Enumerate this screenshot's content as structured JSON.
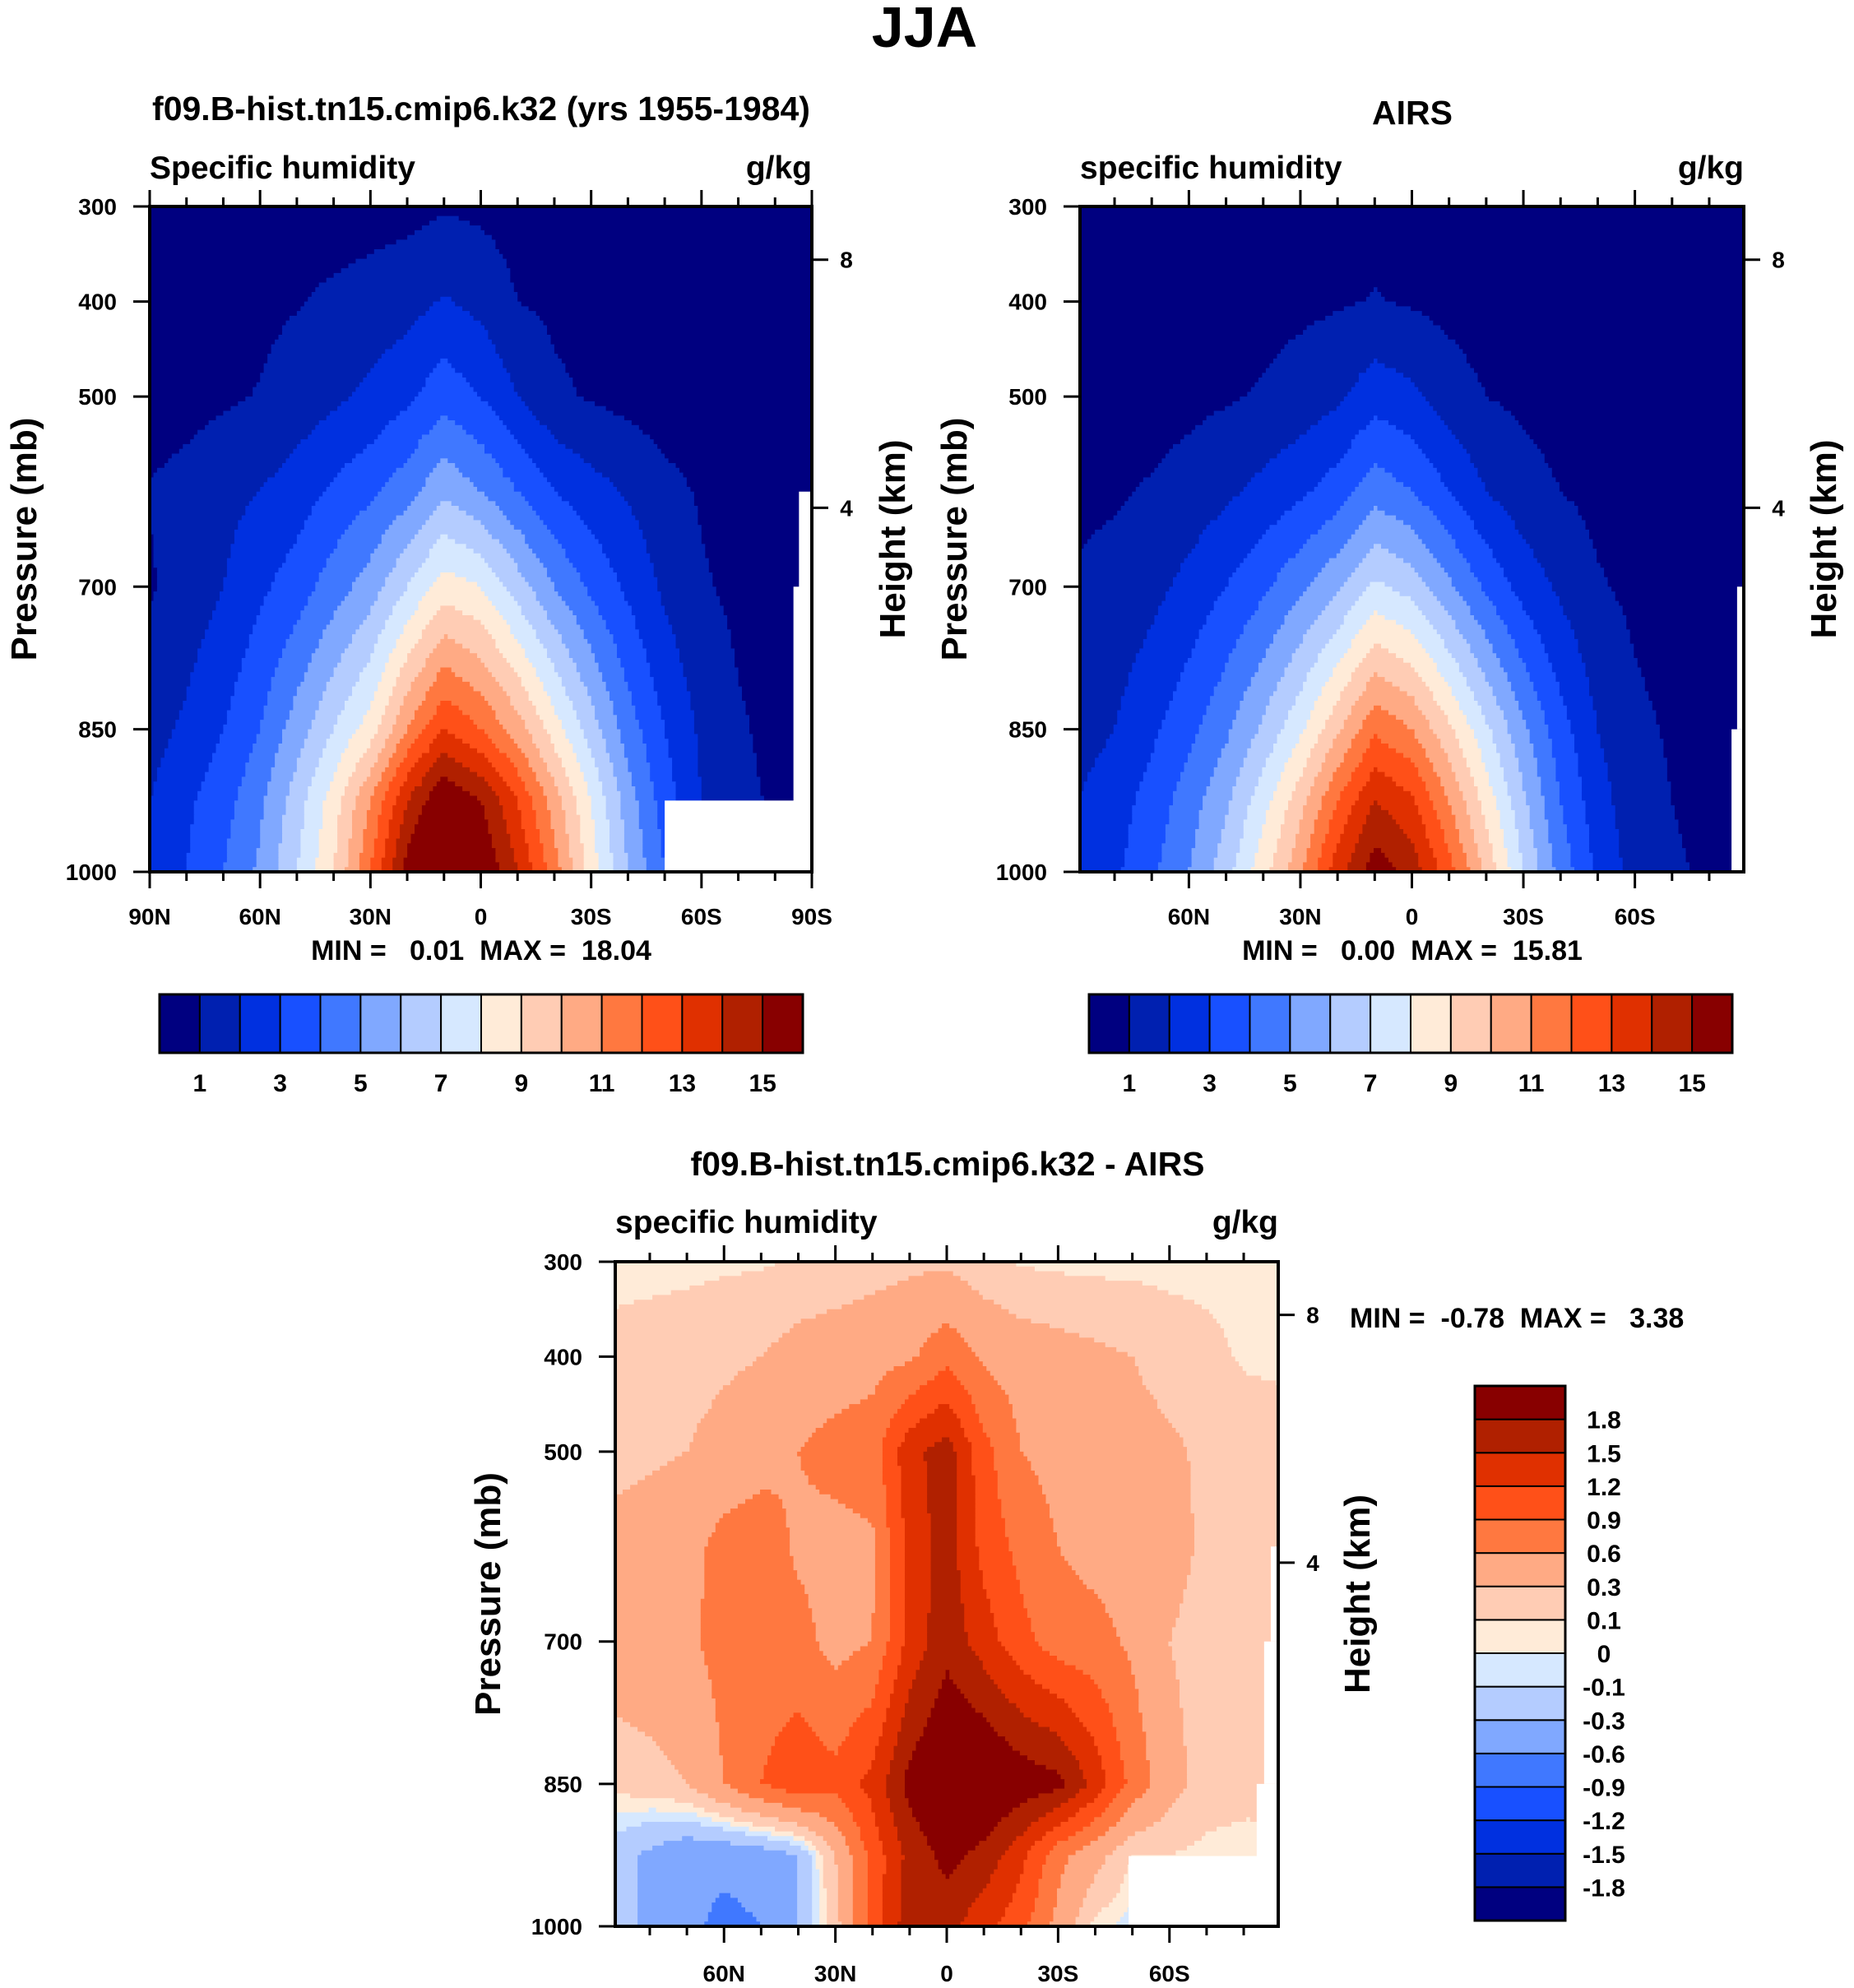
{
  "figure_title": "JJA",
  "palette": [
    "#000080",
    "#0020B0",
    "#0030E0",
    "#1850FF",
    "#4078FF",
    "#80A8FF",
    "#B4CCFF",
    "#D6E8FF",
    "#FFEBD8",
    "#FFCCB4",
    "#FFAA84",
    "#FF7840",
    "#FF5018",
    "#E03000",
    "#B02000",
    "#880000"
  ],
  "chart_data": [
    {
      "type": "heatmap",
      "title": "f09.B-hist.tn15.cmip6.k32 (yrs 1955-1984)",
      "left_string": "Specific humidity",
      "right_string": "g/kg",
      "stats": "MIN =   0.01  MAX =  18.04",
      "ylabel": "Pressure (mb)",
      "y2label": "Height (km)",
      "xlim": [
        90,
        -90
      ],
      "ylim": [
        300,
        1000
      ],
      "x_ticks": [
        {
          "value": 90,
          "label": "90N"
        },
        {
          "value": 60,
          "label": "60N"
        },
        {
          "value": 30,
          "label": "30N"
        },
        {
          "value": 0,
          "label": "0"
        },
        {
          "value": -30,
          "label": "30S"
        },
        {
          "value": -60,
          "label": "60S"
        },
        {
          "value": -90,
          "label": "90S"
        }
      ],
      "y_ticks": [
        {
          "value": 300,
          "label": "300"
        },
        {
          "value": 400,
          "label": "400"
        },
        {
          "value": 500,
          "label": "500"
        },
        {
          "value": 700,
          "label": "700"
        },
        {
          "value": 850,
          "label": "850"
        },
        {
          "value": 1000,
          "label": "1000"
        }
      ],
      "height_ticks": [
        {
          "value": 356,
          "label": "8"
        },
        {
          "value": 617,
          "label": "4"
        }
      ],
      "levels": [
        1,
        2,
        3,
        4,
        5,
        6,
        7,
        8,
        9,
        10,
        11,
        12,
        13,
        14,
        15
      ],
      "colorbar_labels": [
        "1",
        "3",
        "5",
        "7",
        "9",
        "11",
        "13",
        "15"
      ],
      "lat": [
        90,
        80,
        70,
        60,
        50,
        40,
        30,
        20,
        10,
        0,
        -10,
        -20,
        -30,
        -40,
        -50,
        -60,
        -70,
        -80,
        -90
      ],
      "p": [
        300,
        400,
        500,
        600,
        700,
        850,
        925,
        1000
      ],
      "z": [
        [
          0.3,
          0.3,
          0.4,
          0.4,
          0.5,
          0.5,
          0.6,
          0.7,
          0.9,
          0.8,
          0.6,
          0.5,
          0.4,
          0.3,
          0.3,
          0.2,
          0.2,
          0.1,
          0.1
        ],
        [
          0.4,
          0.5,
          0.6,
          0.8,
          0.95,
          1.2,
          1.4,
          1.6,
          2.1,
          1.7,
          1.0,
          0.8,
          0.6,
          0.5,
          0.4,
          0.3,
          0.2,
          0.15,
          0.1
        ],
        [
          0.6,
          0.7,
          0.85,
          1.05,
          1.4,
          1.8,
          2.2,
          2.8,
          3.6,
          3.0,
          2.0,
          1.2,
          0.9,
          0.7,
          0.5,
          0.4,
          0.3,
          0.25,
          0.2
        ],
        [
          1.05,
          1.3,
          1.7,
          2.0,
          2.5,
          3.2,
          3.8,
          4.6,
          5.8,
          5.0,
          4.0,
          3.0,
          2.4,
          1.9,
          1.3,
          0.9,
          0.6,
          0.5,
          0.45
        ],
        [
          0.9,
          1.4,
          2.0,
          2.8,
          3.5,
          4.5,
          5.5,
          7.0,
          8.5,
          8.0,
          6.5,
          5.0,
          3.8,
          2.8,
          1.8,
          1.1,
          0.8,
          0.6,
          0.5
        ],
        [
          1.6,
          2.2,
          3.0,
          4.0,
          5.5,
          7.0,
          8.5,
          11,
          13,
          12,
          10.5,
          8.5,
          6.5,
          4.5,
          3.0,
          1.8,
          1.1,
          0.8,
          0.6
        ],
        [
          2.0,
          2.8,
          3.6,
          4.8,
          6.5,
          8.5,
          11,
          14,
          16,
          15,
          13,
          10.5,
          8,
          5.5,
          3.5,
          2.0,
          1.2,
          0.9,
          0.7
        ],
        [
          2.2,
          3.0,
          4.0,
          5.2,
          7.0,
          9.0,
          12,
          15.5,
          17.5,
          16,
          14,
          11.5,
          8.5,
          6,
          4,
          2.5,
          1.5,
          1,
          0.8
        ]
      ],
      "missing": [
        {
          "lat": [
            -50,
            -90
          ],
          "p": [
            925,
            1000
          ]
        },
        {
          "lat": [
            -86.5,
            -90
          ],
          "p": [
            600,
            1000
          ]
        },
        {
          "lat": [
            -85,
            -90
          ],
          "p": [
            700,
            1000
          ]
        }
      ]
    },
    {
      "type": "heatmap",
      "title": "AIRS",
      "left_string": "specific humidity",
      "right_string": "g/kg",
      "stats": "MIN =   0.00  MAX =  15.81",
      "ylabel": "Pressure (mb)",
      "y2label": "Height (km)",
      "xlim": [
        89.3,
        -89.3
      ],
      "ylim": [
        300,
        1000
      ],
      "x_ticks": [
        {
          "value": 60,
          "label": "60N"
        },
        {
          "value": 30,
          "label": "30N"
        },
        {
          "value": 0,
          "label": "0"
        },
        {
          "value": -30,
          "label": "30S"
        },
        {
          "value": -60,
          "label": "60S"
        }
      ],
      "y_ticks": [
        {
          "value": 300,
          "label": "300"
        },
        {
          "value": 400,
          "label": "400"
        },
        {
          "value": 500,
          "label": "500"
        },
        {
          "value": 700,
          "label": "700"
        },
        {
          "value": 850,
          "label": "850"
        },
        {
          "value": 1000,
          "label": "1000"
        }
      ],
      "height_ticks": [
        {
          "value": 356,
          "label": "8"
        },
        {
          "value": 617,
          "label": "4"
        }
      ],
      "levels": [
        1,
        2,
        3,
        4,
        5,
        6,
        7,
        8,
        9,
        10,
        11,
        12,
        13,
        14,
        15
      ],
      "colorbar_labels": [
        "1",
        "3",
        "5",
        "7",
        "9",
        "11",
        "13",
        "15"
      ],
      "lat": [
        90,
        80,
        70,
        60,
        50,
        40,
        30,
        20,
        10,
        0,
        -10,
        -20,
        -30,
        -40,
        -50,
        -60,
        -70,
        -80,
        -90
      ],
      "p": [
        300,
        400,
        500,
        600,
        700,
        850,
        925,
        1000
      ],
      "z": [
        [
          0.3,
          0.3,
          0.3,
          0.3,
          0.35,
          0.4,
          0.45,
          0.5,
          0.7,
          0.6,
          0.45,
          0.4,
          0.3,
          0.3,
          0.25,
          0.2,
          0.15,
          0.1,
          0.1
        ],
        [
          0.3,
          0.35,
          0.4,
          0.5,
          0.6,
          0.7,
          0.8,
          0.9,
          1.05,
          0.9,
          0.7,
          0.5,
          0.4,
          0.3,
          0.25,
          0.2,
          0.15,
          0.1,
          0.1
        ],
        [
          0.5,
          0.55,
          0.6,
          0.75,
          0.9,
          1.1,
          1.4,
          1.8,
          2.6,
          2.2,
          1.5,
          1.0,
          0.8,
          0.6,
          0.45,
          0.35,
          0.3,
          0.25,
          0.2
        ],
        [
          0.8,
          0.9,
          1.1,
          1.4,
          1.8,
          2.3,
          2.8,
          3.5,
          4.6,
          4.0,
          3.0,
          2.0,
          1.4,
          1.0,
          0.75,
          0.55,
          0.45,
          0.4,
          0.35
        ],
        [
          1.1,
          1.3,
          1.7,
          2.3,
          3.0,
          3.8,
          4.8,
          5.8,
          7.2,
          6.6,
          5.2,
          3.8,
          2.6,
          1.8,
          1.1,
          0.8,
          0.6,
          0.5,
          0.45
        ],
        [
          1.6,
          2.0,
          2.8,
          3.7,
          4.8,
          6.2,
          7.8,
          9.8,
          11.8,
          11,
          9.2,
          7.2,
          5.2,
          3.4,
          2.0,
          1.2,
          0.9,
          0.7,
          0.6
        ],
        [
          2.0,
          2.5,
          3.4,
          4.5,
          5.8,
          7.6,
          9.6,
          12,
          14,
          13.2,
          11,
          8.6,
          6.2,
          4.0,
          2.4,
          1.4,
          1.0,
          0.8,
          0.7
        ],
        [
          2.3,
          2.8,
          3.8,
          5.0,
          6.6,
          8.6,
          10.8,
          13.6,
          15.6,
          14.6,
          12.4,
          9.8,
          7.0,
          4.6,
          2.8,
          1.6,
          1.1,
          0.9,
          0.8
        ]
      ],
      "missing": [
        {
          "lat": [
            -86,
            -89.3
          ],
          "p": [
            850,
            1000
          ]
        },
        {
          "lat": [
            -87.5,
            -89.3
          ],
          "p": [
            700,
            850
          ]
        }
      ]
    },
    {
      "type": "heatmap",
      "title": "f09.B-hist.tn15.cmip6.k32 - AIRS",
      "left_string": "specific humidity",
      "right_string": "g/kg",
      "stats": "MIN =  -0.78  MAX =   3.38",
      "ylabel": "Pressure (mb)",
      "y2label": "Height (km)",
      "xlim": [
        89.3,
        -89.3
      ],
      "ylim": [
        300,
        1000
      ],
      "x_ticks": [
        {
          "value": 60,
          "label": "60N"
        },
        {
          "value": 30,
          "label": "30N"
        },
        {
          "value": 0,
          "label": "0"
        },
        {
          "value": -30,
          "label": "30S"
        },
        {
          "value": -60,
          "label": "60S"
        }
      ],
      "y_ticks": [
        {
          "value": 300,
          "label": "300"
        },
        {
          "value": 400,
          "label": "400"
        },
        {
          "value": 500,
          "label": "500"
        },
        {
          "value": 700,
          "label": "700"
        },
        {
          "value": 850,
          "label": "850"
        },
        {
          "value": 1000,
          "label": "1000"
        }
      ],
      "height_ticks": [
        {
          "value": 356,
          "label": "8"
        },
        {
          "value": 617,
          "label": "4"
        }
      ],
      "levels": [
        -1.8,
        -1.5,
        -1.2,
        -0.9,
        -0.6,
        -0.3,
        -0.1,
        0,
        0.1,
        0.3,
        0.6,
        0.9,
        1.2,
        1.5,
        1.8
      ],
      "colorbar_labels": [
        "-1.8",
        "-1.5",
        "-1.2",
        "-0.9",
        "-0.6",
        "-0.3",
        "-0.1",
        "0",
        "0.1",
        "0.3",
        "0.6",
        "0.9",
        "1.2",
        "1.5",
        "1.8"
      ],
      "lat": [
        90,
        80,
        70,
        60,
        50,
        40,
        30,
        20,
        10,
        0,
        -10,
        -20,
        -30,
        -40,
        -50,
        -60,
        -70,
        -80,
        -90
      ],
      "p": [
        300,
        400,
        500,
        600,
        700,
        850,
        925,
        1000
      ],
      "z": [
        [
          0.05,
          0.05,
          0.06,
          0.07,
          0.08,
          0.12,
          0.15,
          0.2,
          0.25,
          0.25,
          0.15,
          0.08,
          0.06,
          0.05,
          0.05,
          0.05,
          0.05,
          0.05,
          0.05
        ],
        [
          0.15,
          0.18,
          0.2,
          0.25,
          0.3,
          0.4,
          0.45,
          0.5,
          0.55,
          0.8,
          0.55,
          0.45,
          0.4,
          0.35,
          0.3,
          0.2,
          0.15,
          0.08,
          0.06
        ],
        [
          0.2,
          0.25,
          0.3,
          0.4,
          0.5,
          0.6,
          0.7,
          0.75,
          1.4,
          1.65,
          1.0,
          0.6,
          0.5,
          0.45,
          0.4,
          0.35,
          0.25,
          0.2,
          0.2
        ],
        [
          0.4,
          0.45,
          0.5,
          0.7,
          0.75,
          0.55,
          0.5,
          0.55,
          1.3,
          1.65,
          1.1,
          0.8,
          0.6,
          0.5,
          0.45,
          0.4,
          0.25,
          0.2,
          0.2
        ],
        [
          0.45,
          0.5,
          0.55,
          0.7,
          0.75,
          0.7,
          0.5,
          0.6,
          1.3,
          1.7,
          1.35,
          1.0,
          0.75,
          0.7,
          0.55,
          0.3,
          0.2,
          0.2,
          0.2
        ],
        [
          0.15,
          0.2,
          0.3,
          0.6,
          0.9,
          1.1,
          1.0,
          1.3,
          1.9,
          2.2,
          2.2,
          2.0,
          1.9,
          1.4,
          0.8,
          0.4,
          0.2,
          0.15,
          0.15
        ],
        [
          -0.2,
          -0.35,
          -0.5,
          -0.5,
          -0.45,
          -0.3,
          0.3,
          1.0,
          1.6,
          1.9,
          1.7,
          1.3,
          0.7,
          0.4,
          0.1,
          0.1,
          0.05,
          0.05,
          0.05
        ],
        [
          -0.2,
          -0.35,
          -0.5,
          -0.7,
          -0.6,
          -0.3,
          0.2,
          1.0,
          1.7,
          1.6,
          1.3,
          1.0,
          0.5,
          0.05,
          -0.05,
          0,
          0,
          0,
          0
        ]
      ],
      "missing": [
        {
          "lat": [
            -49,
            -89.3
          ],
          "p": [
            926,
            1000
          ]
        },
        {
          "lat": [
            -83.5,
            -89.3
          ],
          "p": [
            850,
            1000
          ]
        },
        {
          "lat": [
            -85.5,
            -89.3
          ],
          "p": [
            700,
            850
          ]
        },
        {
          "lat": [
            -87.3,
            -89.3
          ],
          "p": [
            600,
            700
          ]
        }
      ]
    }
  ]
}
